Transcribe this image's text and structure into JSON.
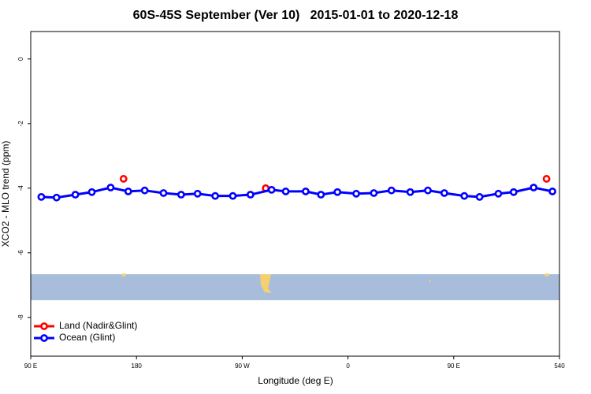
{
  "chart_data": {
    "type": "line",
    "title": "60S-45S September (Ver 10)   2015-01-01 to 2020-12-18",
    "xlabel": "Longitude (deg E)",
    "ylabel": "XCO2 - MLO trend (ppm)",
    "xlim": [
      90,
      540
    ],
    "xticks": [
      {
        "value": 90,
        "label": "90 E"
      },
      180,
      {
        "value": 270,
        "label": "90 W"
      },
      {
        "value": 360,
        "label": "0"
      },
      {
        "value": 450,
        "label": "90 E"
      },
      540
    ],
    "ylim": [
      -9.2,
      0.85
    ],
    "yticks": [
      0,
      -2,
      -4,
      -6,
      -8
    ],
    "legend": "bottomleft",
    "series": [
      {
        "name": "Land (Nadir&Glint)",
        "color": "#ff0000",
        "line": false,
        "x": [
          169,
          290,
          529
        ],
        "values": [
          -3.71,
          -4.0,
          -3.71
        ]
      },
      {
        "name": "Ocean (Glint)",
        "color": "#0000ff",
        "line": true,
        "x": [
          99,
          112,
          128,
          142,
          158,
          173,
          187,
          203,
          218,
          232,
          247,
          262,
          277,
          295,
          307,
          324,
          337,
          351,
          367,
          382,
          397,
          413,
          428,
          442,
          459,
          472,
          488,
          501,
          518,
          534
        ],
        "values": [
          -4.27,
          -4.29,
          -4.2,
          -4.12,
          -3.98,
          -4.1,
          -4.07,
          -4.15,
          -4.2,
          -4.17,
          -4.24,
          -4.24,
          -4.2,
          -4.05,
          -4.1,
          -4.1,
          -4.2,
          -4.12,
          -4.17,
          -4.15,
          -4.07,
          -4.12,
          -4.07,
          -4.15,
          -4.24,
          -4.27,
          -4.17,
          -4.12,
          -3.98,
          -4.1
        ]
      }
    ]
  }
}
